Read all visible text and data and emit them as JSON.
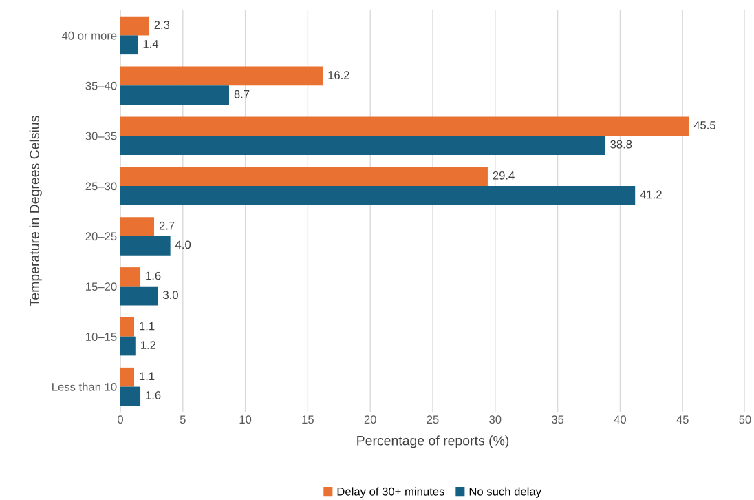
{
  "chart_data": {
    "type": "bar",
    "orientation": "horizontal",
    "xlabel": "Percentage of reports (%)",
    "ylabel": "Temperature in Degrees Celsius",
    "categories": [
      "40 or more",
      "35–40",
      "30–35",
      "25–30",
      "20–25",
      "15–20",
      "10–15",
      "Less than 10"
    ],
    "series": [
      {
        "name": "Delay of 30+ minutes",
        "color": "#e97132",
        "values": [
          2.3,
          16.2,
          45.5,
          29.4,
          2.7,
          1.6,
          1.1,
          1.1
        ],
        "value_labels": [
          "2.3",
          "16.2",
          "45.5",
          "29.4",
          "2.7",
          "1.6",
          "1.1",
          "1.1"
        ]
      },
      {
        "name": "No such delay",
        "color": "#156082",
        "values": [
          1.4,
          8.7,
          38.8,
          41.2,
          4.0,
          3.0,
          1.2,
          1.6
        ],
        "value_labels": [
          "1.4",
          "8.7",
          "38.8",
          "41.2",
          "4.0",
          "3.0",
          "1.2",
          "1.6"
        ]
      }
    ],
    "xlim": [
      0,
      50
    ],
    "xticks": [
      0,
      5,
      10,
      15,
      20,
      25,
      30,
      35,
      40,
      45,
      50
    ],
    "grid": "x",
    "legend": "bottom"
  }
}
